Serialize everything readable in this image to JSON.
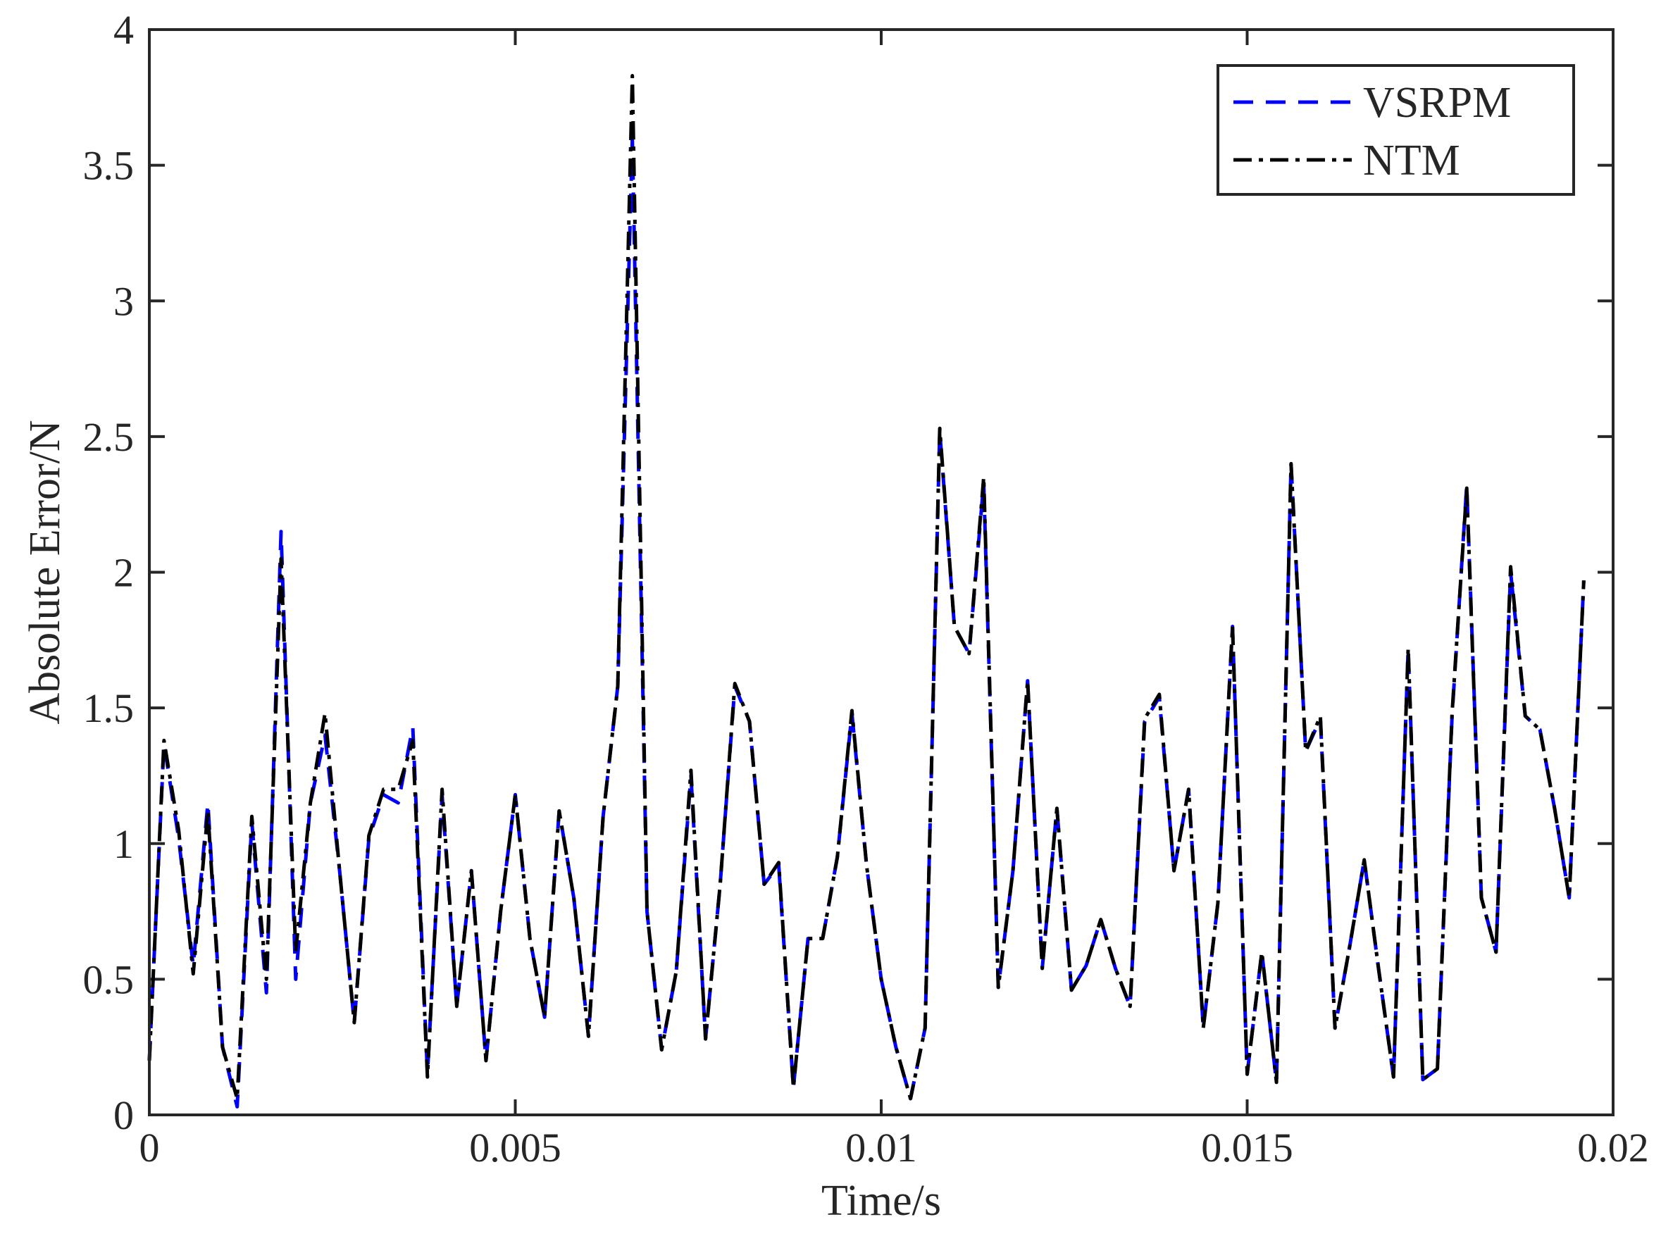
{
  "chart_data": {
    "type": "line",
    "title": "",
    "xlabel": "Time/s",
    "ylabel": "Absolute Error/N",
    "xlim": [
      0,
      0.02
    ],
    "ylim": [
      0,
      4
    ],
    "xticks": [
      0,
      0.005,
      0.01,
      0.015,
      0.02
    ],
    "xtick_labels": [
      "0",
      "0.005",
      "0.01",
      "0.015",
      "0.02"
    ],
    "yticks": [
      0,
      0.5,
      1,
      1.5,
      2,
      2.5,
      3,
      3.5,
      4
    ],
    "ytick_labels": [
      "0",
      "0.5",
      "1",
      "1.5",
      "2",
      "2.5",
      "3",
      "3.5",
      "4"
    ],
    "grid": false,
    "legend_position": "top-right",
    "series": [
      {
        "name": "VSRPM",
        "color": "#0000ff",
        "style": "dashed",
        "x": [
          0,
          0.0002,
          0.0004,
          0.0006,
          0.0008,
          0.001,
          0.0012,
          0.0014,
          0.0016,
          0.0018,
          0.002,
          0.0022,
          0.0024,
          0.0026,
          0.0028,
          0.003,
          0.0032,
          0.0034,
          0.0036,
          0.0038,
          0.004,
          0.0042,
          0.0044,
          0.0046,
          0.0048,
          0.005,
          0.0052,
          0.0054,
          0.0056,
          0.0058,
          0.006,
          0.0062,
          0.0064,
          0.0066,
          0.0068,
          0.007,
          0.0072,
          0.0074,
          0.0076,
          0.0078,
          0.008,
          0.0082,
          0.0084,
          0.0086,
          0.0088,
          0.009,
          0.0092,
          0.0094,
          0.0096,
          0.0098,
          0.01,
          0.0102,
          0.0104,
          0.0106,
          0.0108,
          0.011,
          0.0112,
          0.0114,
          0.0116,
          0.0118,
          0.012,
          0.0122,
          0.0124,
          0.0126,
          0.0128,
          0.013,
          0.0132,
          0.0134,
          0.0136,
          0.0138,
          0.014,
          0.0142,
          0.0144,
          0.0146,
          0.0148,
          0.015,
          0.0152,
          0.0154,
          0.0156,
          0.0158,
          0.016,
          0.0162,
          0.0164,
          0.0166,
          0.0168,
          0.017,
          0.0172,
          0.0174,
          0.0176,
          0.0178,
          0.018,
          0.0182,
          0.0184,
          0.0186,
          0.0188,
          0.019,
          0.0192,
          0.0194,
          0.0196
        ],
        "values": [
          0.2,
          1.37,
          1.02,
          0.55,
          1.15,
          0.25,
          0.03,
          1.08,
          0.45,
          2.15,
          0.5,
          1.15,
          1.4,
          0.9,
          0.34,
          1.02,
          1.18,
          1.15,
          1.43,
          0.15,
          1.18,
          0.4,
          0.9,
          0.2,
          0.75,
          1.18,
          0.65,
          0.36,
          1.12,
          0.8,
          0.29,
          1.1,
          1.58,
          3.6,
          0.75,
          0.24,
          0.53,
          1.25,
          0.28,
          0.85,
          1.58,
          1.45,
          0.85,
          0.92,
          0.1,
          0.65,
          0.65,
          0.95,
          1.48,
          0.92,
          0.5,
          0.25,
          0.06,
          0.32,
          2.52,
          1.8,
          1.7,
          2.33,
          0.47,
          0.9,
          1.6,
          0.54,
          1.13,
          0.46,
          0.55,
          0.72,
          0.54,
          0.4,
          1.45,
          1.54,
          0.9,
          1.2,
          0.32,
          0.78,
          1.8,
          0.15,
          0.6,
          0.12,
          2.4,
          1.34,
          1.46,
          0.32,
          0.62,
          0.94,
          0.53,
          0.14,
          1.72,
          0.13,
          0.17,
          1.47,
          2.32,
          0.8,
          0.6,
          2.0,
          1.47,
          1.42,
          1.13,
          0.8,
          1.97
        ]
      },
      {
        "name": "NTM",
        "color": "#000000",
        "style": "dash-dot",
        "x": [
          0,
          0.0002,
          0.0004,
          0.0006,
          0.0008,
          0.001,
          0.0012,
          0.0014,
          0.0016,
          0.0018,
          0.002,
          0.0022,
          0.0024,
          0.0026,
          0.0028,
          0.003,
          0.0032,
          0.0034,
          0.0036,
          0.0038,
          0.004,
          0.0042,
          0.0044,
          0.0046,
          0.0048,
          0.005,
          0.0052,
          0.0054,
          0.0056,
          0.0058,
          0.006,
          0.0062,
          0.0064,
          0.0066,
          0.0068,
          0.007,
          0.0072,
          0.0074,
          0.0076,
          0.0078,
          0.008,
          0.0082,
          0.0084,
          0.0086,
          0.0088,
          0.009,
          0.0092,
          0.0094,
          0.0096,
          0.0098,
          0.01,
          0.0102,
          0.0104,
          0.0106,
          0.0108,
          0.011,
          0.0112,
          0.0114,
          0.0116,
          0.0118,
          0.012,
          0.0122,
          0.0124,
          0.0126,
          0.0128,
          0.013,
          0.0132,
          0.0134,
          0.0136,
          0.0138,
          0.014,
          0.0142,
          0.0144,
          0.0146,
          0.0148,
          0.015,
          0.0152,
          0.0154,
          0.0156,
          0.0158,
          0.016,
          0.0162,
          0.0164,
          0.0166,
          0.0168,
          0.017,
          0.0172,
          0.0174,
          0.0176,
          0.0178,
          0.018,
          0.0182,
          0.0184,
          0.0186,
          0.0188,
          0.019,
          0.0192,
          0.0194,
          0.0196
        ],
        "values": [
          0.2,
          1.38,
          1.05,
          0.52,
          1.12,
          0.25,
          0.06,
          1.1,
          0.5,
          2.05,
          0.6,
          1.15,
          1.48,
          0.9,
          0.34,
          1.03,
          1.2,
          1.2,
          1.38,
          0.14,
          1.2,
          0.4,
          0.9,
          0.2,
          0.75,
          1.18,
          0.65,
          0.36,
          1.12,
          0.8,
          0.29,
          1.1,
          1.58,
          3.83,
          0.75,
          0.24,
          0.53,
          1.27,
          0.28,
          0.85,
          1.59,
          1.45,
          0.85,
          0.93,
          0.1,
          0.65,
          0.65,
          0.95,
          1.49,
          0.92,
          0.5,
          0.25,
          0.06,
          0.32,
          2.53,
          1.8,
          1.7,
          2.35,
          0.47,
          0.9,
          1.6,
          0.54,
          1.13,
          0.46,
          0.55,
          0.72,
          0.54,
          0.4,
          1.46,
          1.55,
          0.9,
          1.2,
          0.32,
          0.78,
          1.8,
          0.15,
          0.6,
          0.12,
          2.4,
          1.34,
          1.47,
          0.32,
          0.62,
          0.94,
          0.53,
          0.14,
          1.72,
          0.13,
          0.17,
          1.48,
          2.31,
          0.8,
          0.6,
          2.02,
          1.47,
          1.42,
          1.13,
          0.8,
          1.97
        ]
      }
    ]
  }
}
